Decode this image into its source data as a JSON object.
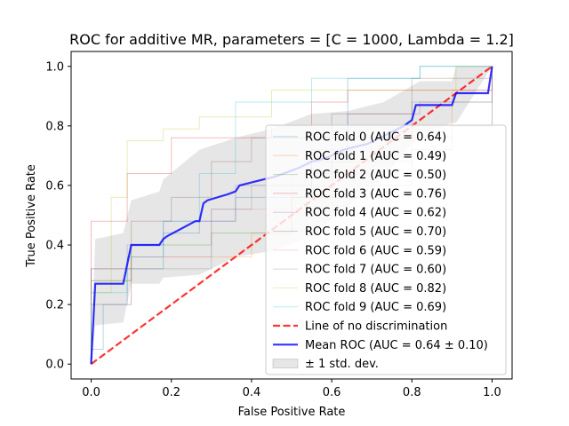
{
  "chart_data": {
    "type": "line",
    "title": "ROC for additive MR, parameters = [C = 1000, Lambda = 1.2]",
    "xlabel": "False Positive Rate",
    "ylabel": "True Positive Rate",
    "xlim": [
      -0.05,
      1.05
    ],
    "ylim": [
      -0.05,
      1.05
    ],
    "xticks": [
      0.0,
      0.2,
      0.4,
      0.6,
      0.8,
      1.0
    ],
    "yticks": [
      0.0,
      0.2,
      0.4,
      0.6,
      0.8,
      1.0
    ],
    "xtick_labels": [
      "0.0",
      "0.2",
      "0.4",
      "0.6",
      "0.8",
      "1.0"
    ],
    "ytick_labels": [
      "0.0",
      "0.2",
      "0.4",
      "0.6",
      "0.8",
      "1.0"
    ],
    "grid": false,
    "legend_position": "lower-right",
    "series": [
      {
        "name": "ROC fold 0 (AUC = 0.64)",
        "color": "#1f77b4",
        "opacity": 0.3,
        "x": [
          0,
          0,
          0.03,
          0.03,
          0.09,
          0.09,
          0.18,
          0.18,
          0.27,
          0.27,
          0.36,
          0.36,
          0.55,
          0.55,
          0.64,
          0.64,
          0.82,
          0.82,
          1.0,
          1.0
        ],
        "y": [
          0,
          0.05,
          0.05,
          0.2,
          0.2,
          0.32,
          0.32,
          0.44,
          0.44,
          0.48,
          0.48,
          0.56,
          0.56,
          0.68,
          0.68,
          0.96,
          0.96,
          1.0,
          1.0,
          1.0
        ]
      },
      {
        "name": "ROC fold 1 (AUC = 0.49)",
        "color": "#ff7f0e",
        "opacity": 0.3,
        "x": [
          0,
          0,
          0.1,
          0.1,
          0.2,
          0.2,
          0.4,
          0.4,
          0.5,
          0.5,
          0.6,
          0.6,
          0.8,
          0.8,
          0.9,
          0.9,
          1.0,
          1.0
        ],
        "y": [
          0,
          0.28,
          0.28,
          0.36,
          0.36,
          0.36,
          0.36,
          0.44,
          0.44,
          0.56,
          0.56,
          0.68,
          0.68,
          0.8,
          0.8,
          0.92,
          0.92,
          1.0
        ]
      },
      {
        "name": "ROC fold 2 (AUC = 0.50)",
        "color": "#2ca02c",
        "opacity": 0.3,
        "x": [
          0,
          0,
          0.1,
          0.1,
          0.3,
          0.3,
          0.5,
          0.5,
          0.7,
          0.7,
          0.8,
          0.8,
          0.9,
          0.9,
          1.0,
          1.0
        ],
        "y": [
          0,
          0.28,
          0.28,
          0.4,
          0.4,
          0.44,
          0.44,
          0.56,
          0.56,
          0.6,
          0.6,
          0.72,
          0.72,
          0.8,
          0.8,
          1.0
        ]
      },
      {
        "name": "ROC fold 3 (AUC = 0.76)",
        "color": "#d62728",
        "opacity": 0.3,
        "x": [
          0,
          0,
          0.09,
          0.09,
          0.2,
          0.2,
          0.45,
          0.45,
          0.55,
          0.55,
          0.64,
          0.64,
          1.0,
          1.0
        ],
        "y": [
          0,
          0.48,
          0.48,
          0.64,
          0.64,
          0.76,
          0.76,
          0.8,
          0.8,
          0.88,
          0.88,
          0.92,
          0.92,
          1.0
        ]
      },
      {
        "name": "ROC fold 4 (AUC = 0.62)",
        "color": "#9467bd",
        "opacity": 0.3,
        "x": [
          0,
          0,
          0.09,
          0.09,
          0.18,
          0.18,
          0.36,
          0.36,
          0.55,
          0.55,
          0.64,
          0.64,
          0.82,
          0.82,
          1.0,
          1.0
        ],
        "y": [
          0,
          0.32,
          0.32,
          0.4,
          0.4,
          0.48,
          0.48,
          0.6,
          0.6,
          0.72,
          0.72,
          0.84,
          0.84,
          0.88,
          0.88,
          1.0
        ]
      },
      {
        "name": "ROC fold 5 (AUC = 0.70)",
        "color": "#8c564b",
        "opacity": 0.3,
        "x": [
          0,
          0,
          0.1,
          0.1,
          0.2,
          0.2,
          0.3,
          0.3,
          0.4,
          0.4,
          0.6,
          0.6,
          0.8,
          0.8,
          1.0,
          1.0
        ],
        "y": [
          0,
          0.32,
          0.32,
          0.48,
          0.48,
          0.56,
          0.56,
          0.68,
          0.68,
          0.76,
          0.76,
          0.84,
          0.84,
          0.96,
          0.96,
          1.0
        ]
      },
      {
        "name": "ROC fold 6 (AUC = 0.59)",
        "color": "#e377c2",
        "opacity": 0.3,
        "x": [
          0,
          0,
          0.1,
          0.1,
          0.3,
          0.3,
          0.5,
          0.5,
          0.7,
          0.7,
          0.9,
          0.9,
          1.0,
          1.0
        ],
        "y": [
          0,
          0.2,
          0.2,
          0.36,
          0.36,
          0.52,
          0.52,
          0.64,
          0.64,
          0.76,
          0.76,
          0.8,
          0.8,
          1.0
        ]
      },
      {
        "name": "ROC fold 7 (AUC = 0.60)",
        "color": "#7f7f7f",
        "opacity": 0.3,
        "x": [
          0,
          0,
          0.1,
          0.1,
          0.3,
          0.3,
          0.4,
          0.4,
          0.6,
          0.6,
          0.8,
          0.8,
          1.0,
          1.0
        ],
        "y": [
          0,
          0.2,
          0.2,
          0.32,
          0.32,
          0.52,
          0.52,
          0.6,
          0.6,
          0.76,
          0.76,
          0.88,
          0.88,
          1.0
        ]
      },
      {
        "name": "ROC fold 8 (AUC = 0.82)",
        "color": "#bcbd22",
        "opacity": 0.3,
        "x": [
          0,
          0,
          0.05,
          0.05,
          0.09,
          0.09,
          0.18,
          0.18,
          0.27,
          0.27,
          0.45,
          0.45,
          0.91,
          0.91,
          1.0,
          1.0
        ],
        "y": [
          0,
          0.24,
          0.24,
          0.56,
          0.56,
          0.75,
          0.75,
          0.79,
          0.79,
          0.83,
          0.83,
          0.92,
          0.92,
          1.0,
          1.0,
          1.0
        ]
      },
      {
        "name": "ROC fold 9 (AUC = 0.69)",
        "color": "#17becf",
        "opacity": 0.3,
        "x": [
          0,
          0,
          0.09,
          0.09,
          0.18,
          0.18,
          0.27,
          0.27,
          0.36,
          0.36,
          0.55,
          0.55,
          0.82,
          0.82,
          1.0,
          1.0
        ],
        "y": [
          0,
          0.24,
          0.24,
          0.36,
          0.36,
          0.48,
          0.48,
          0.64,
          0.64,
          0.88,
          0.88,
          0.96,
          0.96,
          1.0,
          1.0,
          1.0
        ]
      },
      {
        "name": "Line of no discrimination",
        "color": "#ff0000",
        "opacity": 0.8,
        "dashed": true,
        "width": 2.2,
        "x": [
          0,
          1
        ],
        "y": [
          0,
          1
        ]
      },
      {
        "name": "Mean ROC (AUC = 0.64 ± 0.10)",
        "color": "#0000ff",
        "opacity": 0.8,
        "width": 2.2,
        "x": [
          0,
          0.01,
          0.08,
          0.1,
          0.17,
          0.18,
          0.19,
          0.26,
          0.27,
          0.28,
          0.29,
          0.34,
          0.36,
          0.37,
          0.4,
          0.43,
          0.46,
          0.48,
          0.5,
          0.52,
          0.55,
          0.58,
          0.6,
          0.63,
          0.66,
          0.69,
          0.72,
          0.75,
          0.78,
          0.8,
          0.81,
          0.9,
          0.91,
          0.99,
          1.0
        ],
        "y": [
          0,
          0.27,
          0.27,
          0.4,
          0.4,
          0.42,
          0.43,
          0.48,
          0.48,
          0.54,
          0.55,
          0.57,
          0.58,
          0.6,
          0.61,
          0.62,
          0.63,
          0.64,
          0.65,
          0.66,
          0.68,
          0.69,
          0.7,
          0.72,
          0.73,
          0.74,
          0.76,
          0.78,
          0.8,
          0.82,
          0.87,
          0.87,
          0.91,
          0.91,
          1.0
        ]
      }
    ],
    "std_band": {
      "name": "± 1 std. dev.",
      "color": "#808080",
      "opacity": 0.2,
      "x": [
        0,
        0.01,
        0.08,
        0.1,
        0.17,
        0.18,
        0.27,
        0.36,
        0.45,
        0.55,
        0.64,
        0.73,
        0.82,
        0.9,
        0.91,
        1.0
      ],
      "upper": [
        0,
        0.42,
        0.44,
        0.55,
        0.58,
        0.62,
        0.72,
        0.76,
        0.79,
        0.84,
        0.85,
        0.88,
        0.95,
        0.95,
        1.0,
        1.0
      ],
      "lower": [
        0,
        0.13,
        0.14,
        0.27,
        0.27,
        0.29,
        0.3,
        0.36,
        0.38,
        0.43,
        0.53,
        0.63,
        0.77,
        0.81,
        0.81,
        1.0
      ]
    }
  }
}
